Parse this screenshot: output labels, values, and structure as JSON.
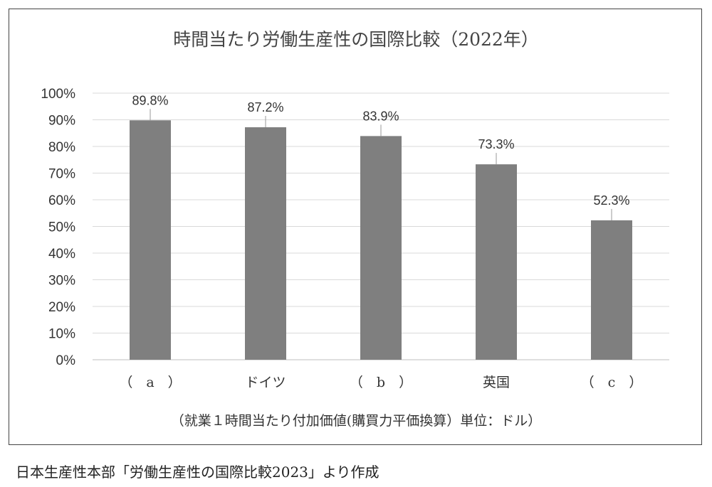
{
  "chart_data": {
    "type": "bar",
    "title": "時間当たり労働生産性の国際比較（2022年）",
    "categories": [
      "（　a　）",
      "ドイツ",
      "（　b　）",
      "英国",
      "（　c　）"
    ],
    "values": [
      89.8,
      87.2,
      83.9,
      73.3,
      52.3
    ],
    "data_labels": [
      "89.8%",
      "87.2%",
      "83.9%",
      "73.3%",
      "52.3%"
    ],
    "xlabel": "（就業１時間当たり付加価値(購買力平価換算）単位：ドル）",
    "ylabel": "",
    "ylim": [
      0,
      100
    ],
    "yticks": [
      "0%",
      "10%",
      "20%",
      "30%",
      "40%",
      "50%",
      "60%",
      "70%",
      "80%",
      "90%",
      "100%"
    ],
    "grid": true,
    "bar_color": "#7f7f7f",
    "grid_color": "#d9d9d9"
  },
  "source": "日本生産性本部「労働生産性の国際比較2023」より作成"
}
